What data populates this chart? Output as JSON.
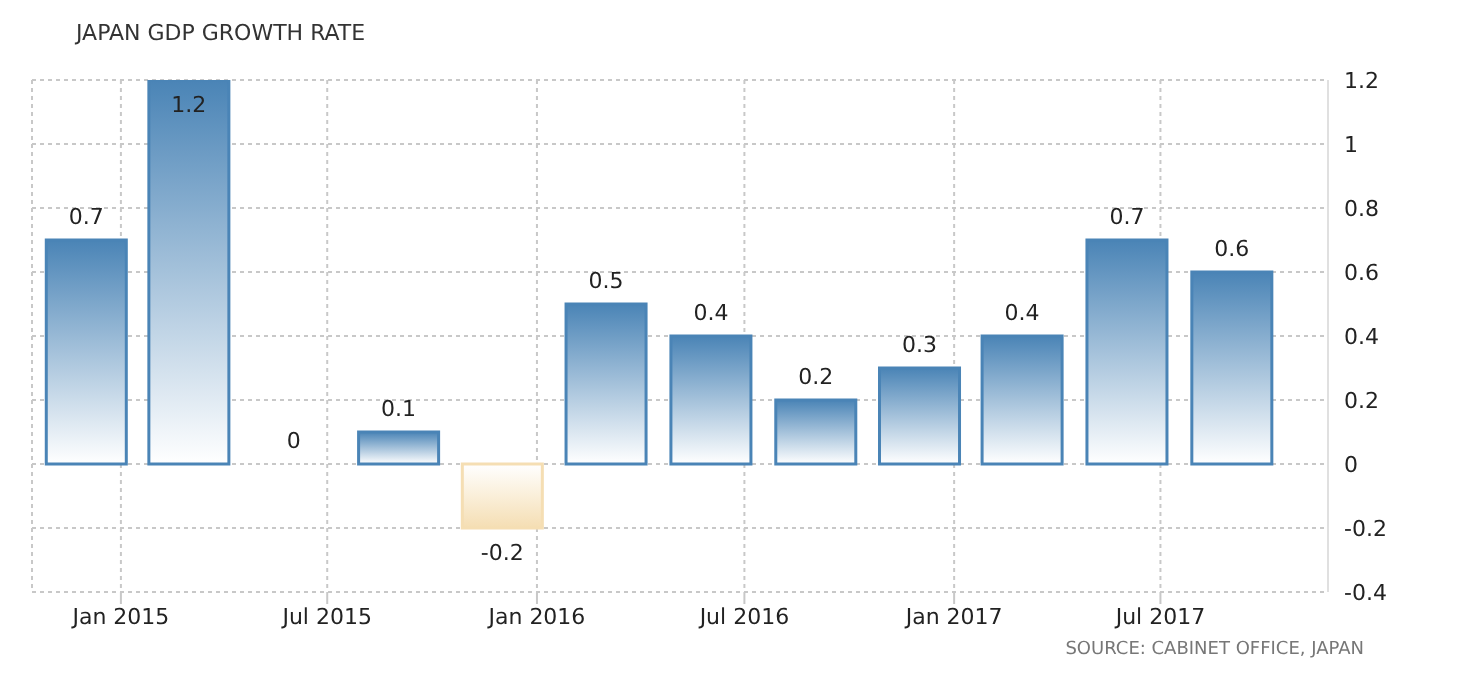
{
  "chart_data": {
    "type": "bar",
    "title": "JAPAN GDP GROWTH RATE",
    "x": [
      "2014-12",
      "2015-03",
      "2015-06",
      "2015-09",
      "2015-12",
      "2016-03",
      "2016-06",
      "2016-09",
      "2016-12",
      "2017-03",
      "2017-06",
      "2017-09"
    ],
    "values": [
      0.7,
      1.2,
      0,
      0.1,
      -0.2,
      0.5,
      0.4,
      0.2,
      0.3,
      0.4,
      0.7,
      0.6
    ],
    "colors": [
      "#4a84b6",
      "#4a84b6",
      "#4a84b6",
      "#4a84b6",
      "#f5deb3",
      "#4a84b6",
      "#4a84b6",
      "#4a84b6",
      "#4a84b6",
      "#4a84b6",
      "#4a84b6",
      "#4a84b6"
    ],
    "data_labels": true,
    "xlim": [
      "2014-10-15",
      "2017-11-25"
    ],
    "xticks": [
      {
        "value": "2015-01",
        "label": "Jan 2015"
      },
      {
        "value": "2015-07",
        "label": "Jul 2015"
      },
      {
        "value": "2016-01",
        "label": "Jan 2016"
      },
      {
        "value": "2016-07",
        "label": "Jul 2016"
      },
      {
        "value": "2017-01",
        "label": "Jan 2017"
      },
      {
        "value": "2017-07",
        "label": "Jul 2017"
      }
    ],
    "ylim": [
      -0.4,
      1.2
    ],
    "yticks": [
      -0.4,
      -0.2,
      0,
      0.2,
      0.4,
      0.6,
      0.8,
      1,
      1.2
    ],
    "grid": true,
    "legend": false,
    "annotations": [
      "SOURCE: CABINET OFFICE, JAPAN"
    ]
  }
}
